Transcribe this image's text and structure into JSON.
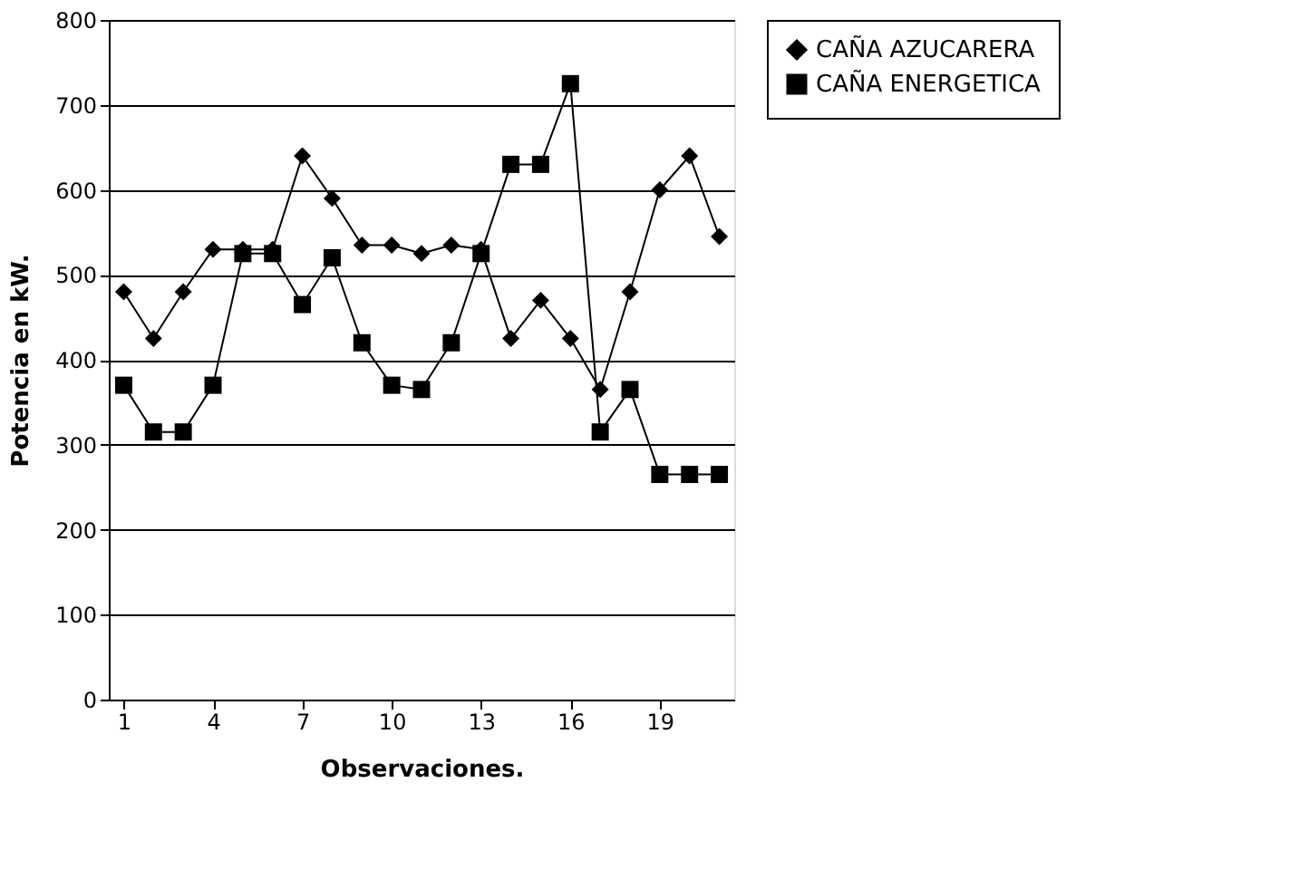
{
  "chart_data": {
    "type": "line",
    "xlabel": "Observaciones.",
    "ylabel": "Potencia en kW.",
    "x": [
      1,
      2,
      3,
      4,
      5,
      6,
      7,
      8,
      9,
      10,
      11,
      12,
      13,
      14,
      15,
      16,
      17,
      18,
      19,
      20,
      21
    ],
    "series": [
      {
        "name": "CAÑA AZUCARERA",
        "color": "#000000",
        "marker": "diamond",
        "values": [
          480,
          425,
          480,
          530,
          530,
          530,
          640,
          590,
          535,
          535,
          525,
          535,
          530,
          425,
          470,
          425,
          365,
          480,
          600,
          640,
          545
        ]
      },
      {
        "name": "CAÑA ENERGETICA",
        "color": "#000000",
        "marker": "square",
        "values": [
          370,
          315,
          315,
          370,
          525,
          525,
          465,
          520,
          420,
          370,
          365,
          420,
          525,
          630,
          630,
          725,
          315,
          365,
          265,
          265,
          265
        ]
      }
    ],
    "xlim": [
      0.5,
      21.5
    ],
    "xticks": [
      1,
      4,
      7,
      10,
      13,
      16,
      19
    ],
    "ylim": [
      0,
      800
    ],
    "yticks": [
      0,
      100,
      200,
      300,
      400,
      500,
      600,
      700,
      800
    ],
    "grid": "y",
    "legend": "right",
    "line_style": "solid"
  }
}
